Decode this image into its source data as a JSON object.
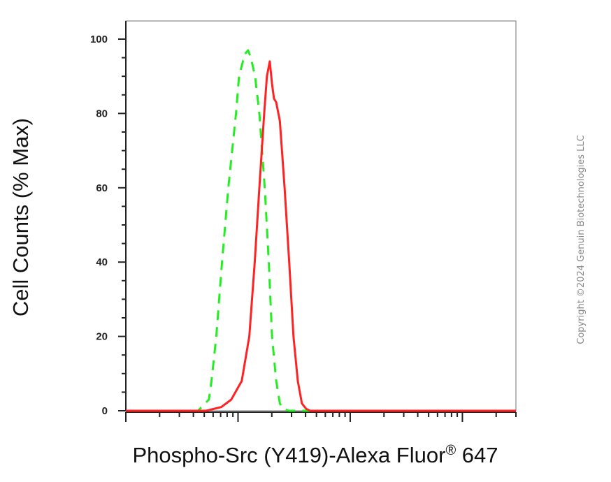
{
  "chart_data": {
    "type": "line",
    "title": "",
    "xlabel": "Phospho-Src (Y419)-Alexa Fluor® 647",
    "ylabel": "Cell Counts (% Max)",
    "ylim": [
      0,
      100
    ],
    "yticks": [
      "0",
      "20",
      "40",
      "60",
      "80",
      "100"
    ],
    "x_scale": "log",
    "x_tick_labels": [],
    "grid": false,
    "legend": "none",
    "series": [
      {
        "style": "dashed",
        "color": "#22ee22",
        "points": [
          [
            1.0,
            0
          ],
          [
            1.3,
            0
          ],
          [
            1.5,
            0
          ],
          [
            1.7,
            0
          ],
          [
            2.0,
            0
          ],
          [
            2.2,
            0
          ],
          [
            2.6,
            0
          ],
          [
            2.9,
            0
          ],
          [
            3.3,
            0
          ],
          [
            4.4,
            0
          ],
          [
            5.5,
            3
          ],
          [
            5.8,
            8
          ],
          [
            6.4,
            20
          ],
          [
            7.2,
            40
          ],
          [
            8.2,
            60
          ],
          [
            9.6,
            80
          ],
          [
            10.2,
            90
          ],
          [
            11.5,
            96
          ],
          [
            12.3,
            97
          ],
          [
            13.0,
            95
          ],
          [
            14.2,
            90
          ],
          [
            15.5,
            80
          ],
          [
            17.3,
            60
          ],
          [
            18.8,
            40
          ],
          [
            20.1,
            20
          ],
          [
            21.9,
            8
          ],
          [
            23.6,
            2
          ],
          [
            25.1,
            0.5
          ],
          [
            28.3,
            0
          ],
          [
            31,
            0
          ],
          [
            35,
            0
          ],
          [
            40,
            0
          ],
          [
            50,
            0
          ],
          [
            100,
            0
          ],
          [
            200,
            0
          ],
          [
            300,
            0
          ],
          [
            500,
            0
          ],
          [
            1000,
            0
          ],
          [
            2000,
            0
          ],
          [
            3000,
            0
          ]
        ]
      },
      {
        "style": "solid",
        "color": "#ff2222",
        "points": [
          [
            1.0,
            0
          ],
          [
            2.2,
            0
          ],
          [
            3.8,
            0
          ],
          [
            5.2,
            0
          ],
          [
            7.1,
            1
          ],
          [
            8.7,
            3
          ],
          [
            10.8,
            8
          ],
          [
            12.6,
            20
          ],
          [
            14.1,
            40
          ],
          [
            15.5,
            60
          ],
          [
            17.1,
            80
          ],
          [
            18.1,
            90
          ],
          [
            19.2,
            94
          ],
          [
            20.1,
            88
          ],
          [
            20.9,
            84
          ],
          [
            21.9,
            83
          ],
          [
            23.6,
            78
          ],
          [
            26.0,
            60
          ],
          [
            28.6,
            40
          ],
          [
            31.2,
            20
          ],
          [
            34.1,
            8
          ],
          [
            37.1,
            2
          ],
          [
            40.5,
            0.5
          ],
          [
            44.0,
            0
          ],
          [
            60,
            0
          ],
          [
            120,
            0
          ],
          [
            250,
            0
          ],
          [
            500,
            0
          ],
          [
            1000,
            0
          ],
          [
            2000,
            0
          ],
          [
            3000,
            0
          ]
        ]
      }
    ]
  },
  "copyright": "Copyright ©2024 Genuin Biotechnologies LLC"
}
